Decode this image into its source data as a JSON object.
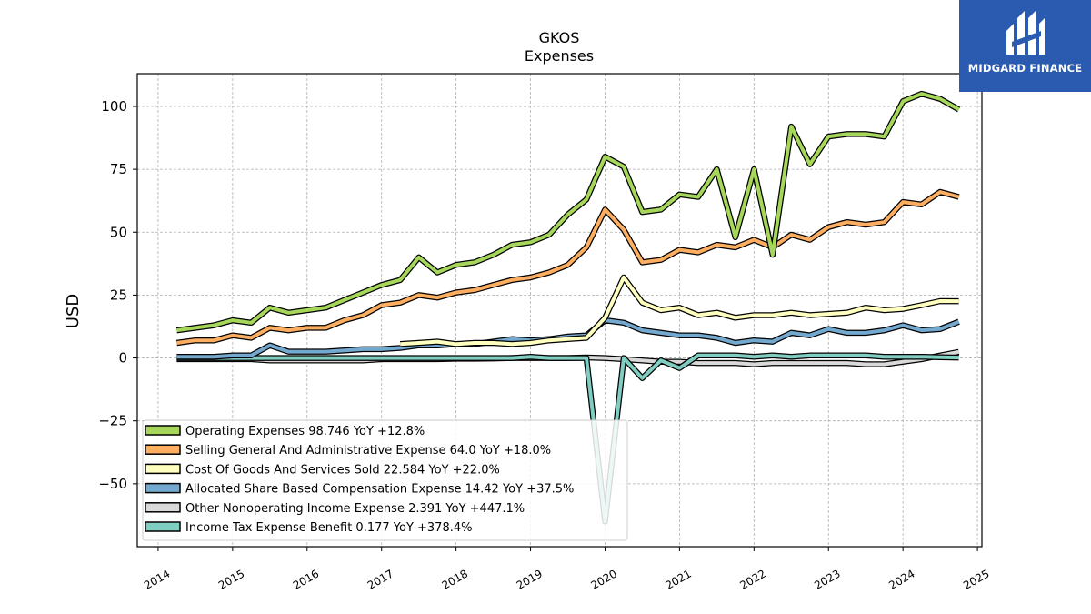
{
  "brand": {
    "name": "MIDGARD FINANCE",
    "color": "#2a5bb0"
  },
  "chart_data": {
    "type": "line",
    "title": "GKOS",
    "subtitle": "Expenses",
    "xlabel": "",
    "ylabel": "USD",
    "xlim": [
      2013.72,
      2025.06
    ],
    "ylim": [
      -75,
      113
    ],
    "x_ticks": [
      2014,
      2015,
      2016,
      2017,
      2018,
      2019,
      2020,
      2021,
      2022,
      2023,
      2024,
      2025
    ],
    "y_ticks": [
      -50,
      -25,
      0,
      25,
      50,
      75,
      100
    ],
    "y_tick_labels": [
      "−50",
      "−25",
      "0",
      "25",
      "50",
      "75",
      "100"
    ],
    "grid": true,
    "legend_position": "lower-left",
    "series": [
      {
        "name": "Operating Expenses",
        "legend": "Operating Expenses  98.746 YoY +12.8%",
        "color": "#a6d75b",
        "x": [
          2014.25,
          2014.5,
          2014.75,
          2015.0,
          2015.25,
          2015.5,
          2015.75,
          2016.0,
          2016.25,
          2016.5,
          2016.75,
          2017.0,
          2017.25,
          2017.5,
          2017.75,
          2018.0,
          2018.25,
          2018.5,
          2018.75,
          2019.0,
          2019.25,
          2019.5,
          2019.75,
          2020.0,
          2020.25,
          2020.5,
          2020.75,
          2021.0,
          2021.25,
          2021.5,
          2021.75,
          2022.0,
          2022.25,
          2022.5,
          2022.75,
          2023.0,
          2023.25,
          2023.5,
          2023.75,
          2024.0,
          2024.25,
          2024.5,
          2024.75
        ],
        "y": [
          11,
          12,
          13,
          15,
          14,
          20,
          18,
          19,
          20,
          23,
          26,
          29,
          31,
          40,
          34,
          37,
          38,
          41,
          45,
          46,
          49,
          57,
          63,
          80,
          76,
          58,
          59,
          65,
          64,
          75,
          48,
          75,
          41,
          92,
          77,
          88,
          89,
          89,
          88,
          102,
          105,
          103,
          98.746
        ]
      },
      {
        "name": "Selling General And Administrative Expense",
        "legend": "Selling General And Administrative Expense  64.0 YoY +18.0%",
        "color": "#fdae61",
        "x": [
          2014.25,
          2014.5,
          2014.75,
          2015.0,
          2015.25,
          2015.5,
          2015.75,
          2016.0,
          2016.25,
          2016.5,
          2016.75,
          2017.0,
          2017.25,
          2017.5,
          2017.75,
          2018.0,
          2018.25,
          2018.5,
          2018.75,
          2019.0,
          2019.25,
          2019.5,
          2019.75,
          2020.0,
          2020.25,
          2020.5,
          2020.75,
          2021.0,
          2021.25,
          2021.5,
          2021.75,
          2022.0,
          2022.25,
          2022.5,
          2022.75,
          2023.0,
          2023.25,
          2023.5,
          2023.75,
          2024.0,
          2024.25,
          2024.5,
          2024.75
        ],
        "y": [
          6,
          7,
          7,
          9,
          8,
          12,
          11,
          12,
          12,
          15,
          17,
          21,
          22,
          25,
          24,
          26,
          27,
          29,
          31,
          32,
          34,
          37,
          44,
          59,
          51,
          38,
          39,
          43,
          42,
          45,
          44,
          47,
          44,
          49,
          47,
          52,
          54,
          53,
          54,
          62,
          61,
          66,
          64.0
        ]
      },
      {
        "name": "Cost Of Goods And Services Sold",
        "legend": "Cost Of Goods And Services Sold  22.584 YoY +22.0%",
        "color": "#ffffbf",
        "x": [
          2017.25,
          2017.5,
          2017.75,
          2018.0,
          2018.25,
          2018.5,
          2018.75,
          2019.0,
          2019.25,
          2019.5,
          2019.75,
          2020.0,
          2020.25,
          2020.5,
          2020.75,
          2021.0,
          2021.25,
          2021.5,
          2021.75,
          2022.0,
          2022.25,
          2022.5,
          2022.75,
          2023.0,
          2023.25,
          2023.5,
          2023.75,
          2024.0,
          2024.25,
          2024.5,
          2024.75
        ],
        "y": [
          5.5,
          6,
          6.5,
          5.5,
          6,
          6,
          5.5,
          6,
          7,
          7.5,
          8,
          16,
          32,
          22,
          19,
          20,
          17,
          18,
          16,
          17,
          17,
          18,
          17,
          17.5,
          18,
          20,
          19,
          19.5,
          21,
          22.6,
          22.584
        ]
      },
      {
        "name": "Allocated Share Based Compensation Expense",
        "legend": "Allocated Share Based Compensation Expense  14.42 YoY +37.5%",
        "color": "#74a9cf",
        "x": [
          2014.25,
          2014.5,
          2014.75,
          2015.0,
          2015.25,
          2015.5,
          2015.75,
          2016.0,
          2016.25,
          2016.5,
          2016.75,
          2017.0,
          2017.25,
          2017.5,
          2017.75,
          2018.0,
          2018.25,
          2018.5,
          2018.75,
          2019.0,
          2019.25,
          2019.5,
          2019.75,
          2020.0,
          2020.25,
          2020.5,
          2020.75,
          2021.0,
          2021.25,
          2021.5,
          2021.75,
          2022.0,
          2022.25,
          2022.5,
          2022.75,
          2023.0,
          2023.25,
          2023.5,
          2023.75,
          2024.0,
          2024.25,
          2024.5,
          2024.75
        ],
        "y": [
          0.5,
          0.5,
          0.5,
          1,
          1,
          5,
          2.5,
          2.5,
          2.5,
          3,
          3.5,
          3.5,
          4,
          5,
          5,
          5.5,
          5.5,
          6.5,
          7.5,
          7,
          7.5,
          8.5,
          9,
          15,
          14,
          11,
          10,
          9,
          9,
          8,
          6,
          7,
          6.5,
          10,
          9,
          11.5,
          10,
          10,
          11,
          13,
          11,
          11.5,
          14.42
        ]
      },
      {
        "name": "Other Nonoperating Income Expense",
        "legend": "Other Nonoperating Income Expense  2.391 YoY +447.1%",
        "color": "#d9d9d9",
        "x": [
          2014.25,
          2014.5,
          2014.75,
          2015.0,
          2015.25,
          2015.5,
          2015.75,
          2016.0,
          2016.25,
          2016.5,
          2016.75,
          2017.0,
          2017.25,
          2017.5,
          2017.75,
          2018.0,
          2018.25,
          2018.5,
          2018.75,
          2019.0,
          2019.25,
          2019.5,
          2019.75,
          2020.0,
          2020.25,
          2020.5,
          2020.75,
          2021.0,
          2021.25,
          2021.5,
          2021.75,
          2022.0,
          2022.25,
          2022.5,
          2022.75,
          2023.0,
          2023.25,
          2023.5,
          2023.75,
          2024.0,
          2024.25,
          2024.5,
          2024.75
        ],
        "y": [
          -0.5,
          -0.5,
          -0.5,
          -0.5,
          -0.5,
          -1,
          -1,
          -1,
          -1,
          -1,
          -1,
          -0.5,
          -0.5,
          -0.5,
          -0.5,
          -0.3,
          -0.3,
          -0.2,
          0,
          0,
          0,
          0,
          0.2,
          0,
          -0.5,
          -1,
          -1.5,
          -1.5,
          -2,
          -2,
          -2,
          -2.5,
          -2,
          -2,
          -2,
          -2,
          -2,
          -2.5,
          -2.5,
          -1.5,
          -0.5,
          1,
          2.391
        ]
      },
      {
        "name": "Income Tax Expense Benefit",
        "legend": "Income Tax Expense Benefit  0.177 YoY +378.4%",
        "color": "#80cdc1",
        "x": [
          2014.25,
          2014.5,
          2014.75,
          2015.0,
          2015.25,
          2015.5,
          2015.75,
          2016.0,
          2016.25,
          2016.5,
          2016.75,
          2017.0,
          2017.25,
          2017.5,
          2017.75,
          2018.0,
          2018.25,
          2018.5,
          2018.75,
          2019.0,
          2019.25,
          2019.5,
          2019.75,
          2020.0,
          2020.25,
          2020.5,
          2020.75,
          2021.0,
          2021.25,
          2021.5,
          2021.75,
          2022.0,
          2022.25,
          2022.5,
          2022.75,
          2023.0,
          2023.25,
          2023.5,
          2023.75,
          2024.0,
          2024.25,
          2024.5,
          2024.75
        ],
        "y": [
          0,
          0,
          0,
          0,
          0,
          0,
          0,
          0,
          0,
          0,
          0,
          0,
          0,
          0,
          0,
          0,
          0,
          0,
          0,
          0.5,
          0,
          0,
          0,
          -65,
          0,
          -8,
          -1,
          -4,
          1,
          1,
          1,
          0.5,
          1,
          0.5,
          1,
          1,
          1,
          1,
          0.5,
          0.5,
          0.5,
          0.3,
          0.177
        ]
      }
    ]
  }
}
